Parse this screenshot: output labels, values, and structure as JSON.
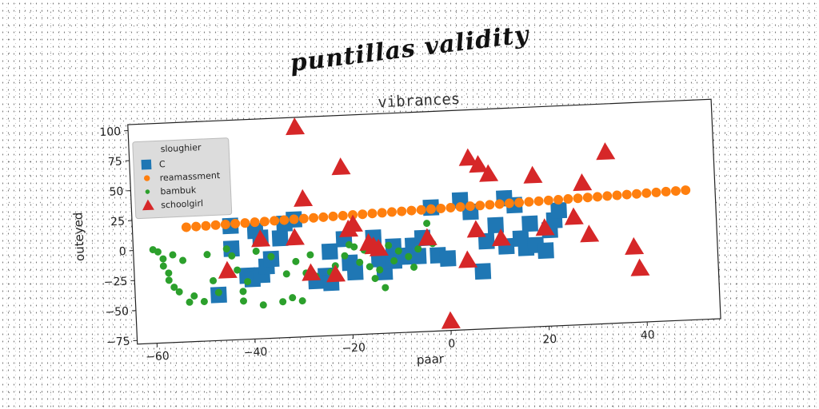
{
  "page_title": "puntillas validity",
  "chart_data": {
    "type": "scatter",
    "title": "vibrances",
    "xlabel": "paar",
    "ylabel": "outeyed",
    "xlim": [
      -64,
      55
    ],
    "ylim": [
      -78,
      105
    ],
    "xticks": [
      -60,
      -40,
      -20,
      0,
      20,
      40
    ],
    "yticks": [
      -75,
      -50,
      -25,
      0,
      25,
      50,
      75,
      100
    ],
    "grid": false,
    "legend": {
      "title": "sloughier",
      "placement": "top-left"
    },
    "series": [
      {
        "name": "C",
        "marker": "square",
        "color": "#1f77b4",
        "points": [
          [
            -47,
            -40
          ],
          [
            -44,
            17
          ],
          [
            -44,
            -2
          ],
          [
            -41,
            -25
          ],
          [
            -40,
            -28
          ],
          [
            -38,
            -25
          ],
          [
            -37,
            -18
          ],
          [
            -39,
            12
          ],
          [
            -38,
            6
          ],
          [
            -36,
            -12
          ],
          [
            -34,
            5
          ],
          [
            -33,
            17
          ],
          [
            -31,
            20
          ],
          [
            -27,
            -32
          ],
          [
            -25,
            -28
          ],
          [
            -24,
            -34
          ],
          [
            -24,
            -8
          ],
          [
            -21,
            2
          ],
          [
            -20,
            -18
          ],
          [
            -19,
            -26
          ],
          [
            -15,
            2
          ],
          [
            -14,
            -16
          ],
          [
            -13,
            -27
          ],
          [
            -11,
            -6
          ],
          [
            -11,
            -18
          ],
          [
            -10,
            -14
          ],
          [
            -9,
            -15
          ],
          [
            -7,
            -6
          ],
          [
            -6,
            -15
          ],
          [
            -5,
            0
          ],
          [
            -3,
            25
          ],
          [
            -2,
            -15
          ],
          [
            0,
            -18
          ],
          [
            3,
            30
          ],
          [
            5,
            20
          ],
          [
            7,
            -30
          ],
          [
            8,
            -5
          ],
          [
            10,
            8
          ],
          [
            12,
            30
          ],
          [
            12,
            -10
          ],
          [
            14,
            24
          ],
          [
            15,
            -4
          ],
          [
            16,
            -12
          ],
          [
            17,
            8
          ],
          [
            18,
            -10
          ],
          [
            20,
            -15
          ],
          [
            21,
            2
          ],
          [
            22,
            10
          ],
          [
            23,
            18
          ]
        ]
      },
      {
        "name": "reamassment",
        "marker": "circle",
        "color": "#ff7f0e",
        "points": [
          [
            -53,
            17.5
          ],
          [
            -51,
            17.7
          ],
          [
            -49,
            17.9
          ],
          [
            -47,
            18.2
          ],
          [
            -45,
            18.4
          ],
          [
            -43,
            18.7
          ],
          [
            -41,
            18.9
          ],
          [
            -39,
            19.2
          ],
          [
            -37,
            19.4
          ],
          [
            -35,
            19.7
          ],
          [
            -33,
            19.9
          ],
          [
            -31,
            20.2
          ],
          [
            -29,
            20.4
          ],
          [
            -27,
            20.7
          ],
          [
            -25,
            20.9
          ],
          [
            -23,
            21.2
          ],
          [
            -21,
            21.4
          ],
          [
            -19,
            21.7
          ],
          [
            -17,
            21.9
          ],
          [
            -15,
            22.2
          ],
          [
            -13,
            22.4
          ],
          [
            -11,
            22.7
          ],
          [
            -9,
            22.9
          ],
          [
            -7,
            23.2
          ],
          [
            -5,
            23.4
          ],
          [
            -3,
            23.7
          ],
          [
            -1,
            23.9
          ],
          [
            1,
            24.2
          ],
          [
            3,
            24.4
          ],
          [
            5,
            24.7
          ],
          [
            7,
            24.9
          ],
          [
            9,
            25.2
          ],
          [
            11,
            25.4
          ],
          [
            13,
            25.7
          ],
          [
            15,
            25.9
          ],
          [
            17,
            26.2
          ],
          [
            19,
            26.4
          ],
          [
            21,
            26.7
          ],
          [
            23,
            26.9
          ],
          [
            25,
            27.2
          ],
          [
            27,
            27.4
          ],
          [
            29,
            27.7
          ],
          [
            31,
            27.9
          ],
          [
            33,
            28.2
          ],
          [
            35,
            28.4
          ],
          [
            37,
            28.7
          ],
          [
            39,
            28.9
          ],
          [
            41,
            29.2
          ],
          [
            43,
            29.4
          ],
          [
            45,
            29.7
          ],
          [
            47,
            29.9
          ],
          [
            49,
            30.2
          ]
        ]
      },
      {
        "name": "bambuk",
        "marker": "dot",
        "color": "#2ca02c",
        "points": [
          [
            -60,
            0
          ],
          [
            -59,
            -2
          ],
          [
            -58,
            -8
          ],
          [
            -58,
            -14
          ],
          [
            -57,
            -20
          ],
          [
            -57,
            -26
          ],
          [
            -56,
            -32
          ],
          [
            -55,
            -36
          ],
          [
            -56,
            -5
          ],
          [
            -54,
            -10
          ],
          [
            -53,
            -45
          ],
          [
            -52,
            -40
          ],
          [
            -50,
            -45
          ],
          [
            -49,
            -6
          ],
          [
            -48,
            -28
          ],
          [
            -47,
            -38
          ],
          [
            -45,
            -2
          ],
          [
            -44,
            -8
          ],
          [
            -43,
            -20
          ],
          [
            -42,
            -38
          ],
          [
            -42,
            -46
          ],
          [
            -41,
            -30
          ],
          [
            -39,
            -5
          ],
          [
            -38,
            -50
          ],
          [
            -36,
            -10
          ],
          [
            -34,
            -48
          ],
          [
            -33,
            -25
          ],
          [
            -32,
            -45
          ],
          [
            -31,
            -15
          ],
          [
            -30,
            -48
          ],
          [
            -29,
            -25
          ],
          [
            -28,
            -10
          ],
          [
            -27,
            -28
          ],
          [
            -24,
            -25
          ],
          [
            -23,
            -20
          ],
          [
            -21,
            -12
          ],
          [
            -20,
            -3
          ],
          [
            -19,
            -5
          ],
          [
            -18,
            -18
          ],
          [
            -17,
            -8
          ],
          [
            -16,
            -22
          ],
          [
            -15,
            -32
          ],
          [
            -14,
            -25
          ],
          [
            -13,
            -40
          ],
          [
            -12,
            -5
          ],
          [
            -11,
            -18
          ],
          [
            -10,
            -10
          ],
          [
            -8,
            -15
          ],
          [
            -7,
            -24
          ],
          [
            -6,
            -9
          ],
          [
            -4,
            12
          ],
          [
            -3,
            -5
          ]
        ]
      },
      {
        "name": "schoolgirl",
        "marker": "triangle",
        "color": "#d62728",
        "points": [
          [
            -30,
            97
          ],
          [
            -45,
            -20
          ],
          [
            -38,
            5
          ],
          [
            -31,
            5
          ],
          [
            -29,
            37
          ],
          [
            -28,
            -25
          ],
          [
            -23,
            -27
          ],
          [
            -21,
            62
          ],
          [
            -20,
            10
          ],
          [
            -19,
            14
          ],
          [
            -16,
            -2
          ],
          [
            -15,
            -5
          ],
          [
            -14,
            -7
          ],
          [
            -4,
            0
          ],
          [
            0,
            -70
          ],
          [
            4,
            -20
          ],
          [
            5,
            65
          ],
          [
            6,
            5
          ],
          [
            7,
            59
          ],
          [
            9,
            51
          ],
          [
            11,
            -3
          ],
          [
            18,
            48
          ],
          [
            20,
            4
          ],
          [
            26,
            12
          ],
          [
            28,
            40
          ],
          [
            29,
            -3
          ],
          [
            33,
            65
          ],
          [
            38,
            -15
          ],
          [
            39,
            -33
          ]
        ]
      }
    ]
  }
}
